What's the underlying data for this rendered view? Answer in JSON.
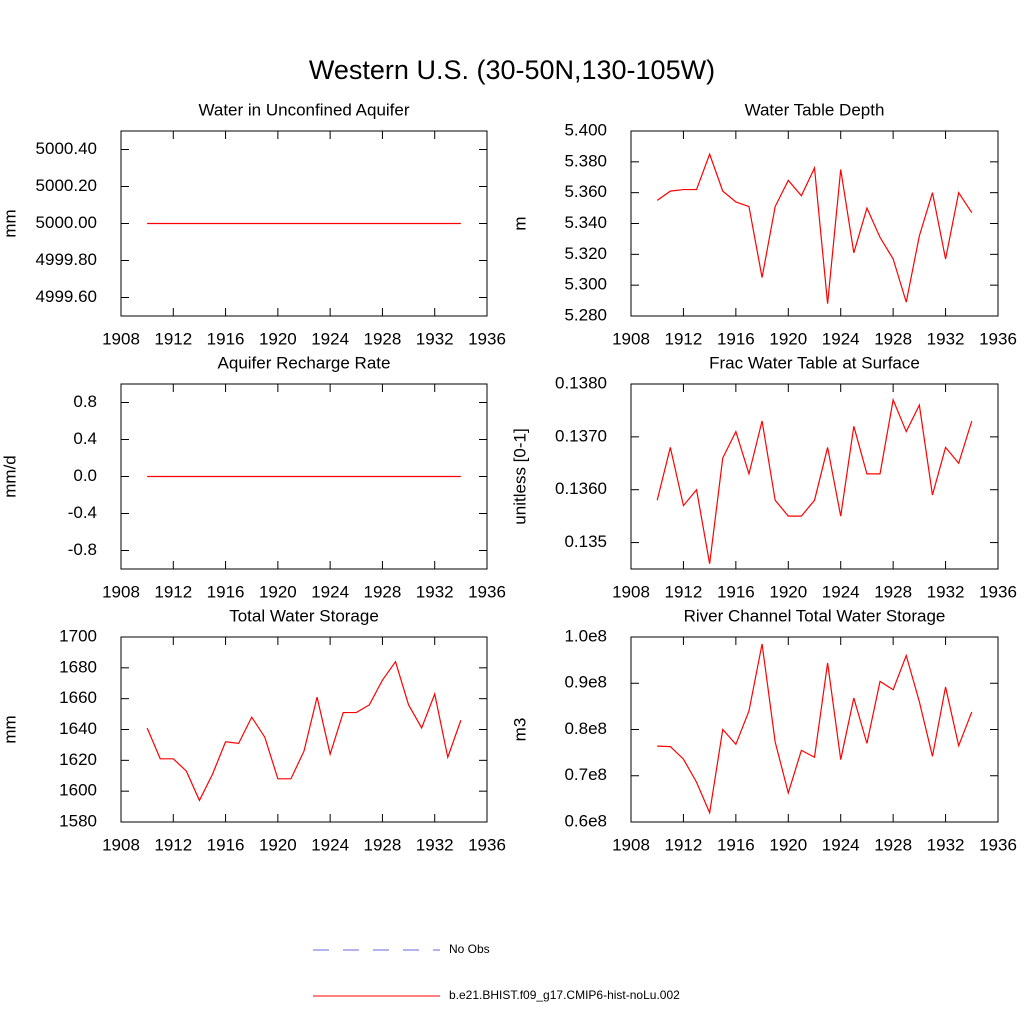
{
  "title": "Western U.S. (30-50N,130-105W)",
  "legend": [
    {
      "name": "No Obs",
      "color": "#6a6ad8",
      "dashed": true
    },
    {
      "name": "b.e21.BHIST.f09_g17.CMIP6-hist-noLu.002",
      "color": "#ff0000",
      "dashed": false
    }
  ],
  "chart_data": [
    {
      "type": "line",
      "title": "Water in Unconfined Aquifer",
      "y_label": "mm",
      "color": "#ff0000",
      "x": [
        1910,
        1911,
        1912,
        1913,
        1914,
        1915,
        1916,
        1917,
        1918,
        1919,
        1920,
        1921,
        1922,
        1923,
        1924,
        1925,
        1926,
        1927,
        1928,
        1929,
        1930,
        1931,
        1932,
        1933,
        1934
      ],
      "values": [
        5000,
        5000,
        5000,
        5000,
        5000,
        5000,
        5000,
        5000,
        5000,
        5000,
        5000,
        5000,
        5000,
        5000,
        5000,
        5000,
        5000,
        5000,
        5000,
        5000,
        5000,
        5000,
        5000,
        5000,
        5000
      ],
      "xlim": [
        1908,
        1936
      ],
      "xticks": [
        1908,
        1912,
        1916,
        1920,
        1924,
        1928,
        1932,
        1936
      ],
      "ylim": [
        4999.5,
        5000.5
      ],
      "yticks": [
        {
          "value": 4999.6,
          "label": "4999.60"
        },
        {
          "value": 4999.8,
          "label": "4999.80"
        },
        {
          "value": 5000.0,
          "label": "5000.00"
        },
        {
          "value": 5000.2,
          "label": "5000.20"
        },
        {
          "value": 5000.4,
          "label": "5000.40"
        }
      ]
    },
    {
      "type": "line",
      "title": "Water Table Depth",
      "y_label": "m",
      "color": "#ff0000",
      "x": [
        1910,
        1911,
        1912,
        1913,
        1914,
        1915,
        1916,
        1917,
        1918,
        1919,
        1920,
        1921,
        1922,
        1923,
        1924,
        1925,
        1926,
        1927,
        1928,
        1929,
        1930,
        1931,
        1932,
        1933,
        1934
      ],
      "values": [
        5.355,
        5.361,
        5.362,
        5.362,
        5.385,
        5.361,
        5.354,
        5.351,
        5.305,
        5.351,
        5.368,
        5.358,
        5.376,
        5.288,
        5.375,
        5.321,
        5.35,
        5.331,
        5.317,
        5.289,
        5.332,
        5.36,
        5.317,
        5.36,
        5.347
      ],
      "xlim": [
        1908,
        1936
      ],
      "xticks": [
        1908,
        1912,
        1916,
        1920,
        1924,
        1928,
        1932,
        1936
      ],
      "ylim": [
        5.28,
        5.4
      ],
      "yticks": [
        {
          "value": 5.28,
          "label": "5.280"
        },
        {
          "value": 5.3,
          "label": "5.300"
        },
        {
          "value": 5.32,
          "label": "5.320"
        },
        {
          "value": 5.34,
          "label": "5.340"
        },
        {
          "value": 5.36,
          "label": "5.360"
        },
        {
          "value": 5.38,
          "label": "5.380"
        },
        {
          "value": 5.4,
          "label": "5.400"
        }
      ]
    },
    {
      "type": "line",
      "title": "Aquifer Recharge Rate",
      "y_label": "mm/d",
      "color": "#ff0000",
      "x": [
        1910,
        1911,
        1912,
        1913,
        1914,
        1915,
        1916,
        1917,
        1918,
        1919,
        1920,
        1921,
        1922,
        1923,
        1924,
        1925,
        1926,
        1927,
        1928,
        1929,
        1930,
        1931,
        1932,
        1933,
        1934
      ],
      "values": [
        0,
        0,
        0,
        0,
        0,
        0,
        0,
        0,
        0,
        0,
        0,
        0,
        0,
        0,
        0,
        0,
        0,
        0,
        0,
        0,
        0,
        0,
        0,
        0,
        0
      ],
      "xlim": [
        1908,
        1936
      ],
      "xticks": [
        1908,
        1912,
        1916,
        1920,
        1924,
        1928,
        1932,
        1936
      ],
      "ylim": [
        -1,
        1
      ],
      "yticks": [
        -0.8,
        -0.4,
        {
          "value": 0,
          "label": "0.0"
        },
        0.4,
        0.8
      ]
    },
    {
      "type": "line",
      "title": "Frac Water Table at Surface",
      "y_label": "unitless [0-1]",
      "color": "#ff0000",
      "x": [
        1910,
        1911,
        1912,
        1913,
        1914,
        1915,
        1916,
        1917,
        1918,
        1919,
        1920,
        1921,
        1922,
        1923,
        1924,
        1925,
        1926,
        1927,
        1928,
        1929,
        1930,
        1931,
        1932,
        1933,
        1934
      ],
      "values": [
        0.1358,
        0.1368,
        0.1357,
        0.136,
        0.1346,
        0.1366,
        0.1371,
        0.1363,
        0.1373,
        0.1358,
        0.1355,
        0.1355,
        0.1358,
        0.1368,
        0.1355,
        0.1372,
        0.1363,
        0.1363,
        0.1377,
        0.1371,
        0.1376,
        0.1359,
        0.1368,
        0.1365,
        0.1373
      ],
      "xlim": [
        1908,
        1936
      ],
      "xticks": [
        1908,
        1912,
        1916,
        1920,
        1924,
        1928,
        1932,
        1936
      ],
      "ylim": [
        0.1345,
        0.138
      ],
      "yticks": [
        0.135,
        {
          "value": 0.136,
          "label": "0.1360"
        },
        {
          "value": 0.137,
          "label": "0.1370"
        },
        {
          "value": 0.138,
          "label": "0.1380"
        }
      ]
    },
    {
      "type": "line",
      "title": "Total Water Storage",
      "y_label": "mm",
      "color": "#ff0000",
      "x": [
        1910,
        1911,
        1912,
        1913,
        1914,
        1915,
        1916,
        1917,
        1918,
        1919,
        1920,
        1921,
        1922,
        1923,
        1924,
        1925,
        1926,
        1927,
        1928,
        1929,
        1930,
        1931,
        1932,
        1933,
        1934
      ],
      "values": [
        1641,
        1621,
        1621,
        1613,
        1594,
        1611,
        1632,
        1631,
        1648,
        1635,
        1608,
        1608,
        1626,
        1661,
        1624,
        1651,
        1651,
        1656,
        1672,
        1684,
        1656,
        1641,
        1663,
        1622,
        1646
      ],
      "xlim": [
        1908,
        1936
      ],
      "xticks": [
        1908,
        1912,
        1916,
        1920,
        1924,
        1928,
        1932,
        1936
      ],
      "ylim": [
        1580,
        1700
      ],
      "yticks": [
        1580,
        1600,
        1620,
        1640,
        1660,
        1680,
        1700
      ]
    },
    {
      "type": "line",
      "title": "River Channel Total Water Storage",
      "y_label": "m3",
      "color": "#ff0000",
      "x": [
        1910,
        1911,
        1912,
        1913,
        1914,
        1915,
        1916,
        1917,
        1918,
        1919,
        1920,
        1921,
        1922,
        1923,
        1924,
        1925,
        1926,
        1927,
        1928,
        1929,
        1930,
        1931,
        1932,
        1933,
        1934
      ],
      "values": [
        76400000,
        76300000,
        73600000,
        68600000,
        62000000,
        80000000,
        76800000,
        84000000,
        98500000,
        77300000,
        66300000,
        75500000,
        74000000,
        94400000,
        73500000,
        86800000,
        77000000,
        90400000,
        88600000,
        96000000,
        86000000,
        74200000,
        89200000,
        76500000,
        83800000
      ],
      "xlim": [
        1908,
        1936
      ],
      "xticks": [
        1908,
        1912,
        1916,
        1920,
        1924,
        1928,
        1932,
        1936
      ],
      "ylim": [
        60000000,
        100000000
      ],
      "yticks": [
        {
          "value": 60000000,
          "label": "0.6e8"
        },
        {
          "value": 70000000,
          "label": "0.7e8"
        },
        {
          "value": 80000000,
          "label": "0.8e8"
        },
        {
          "value": 90000000,
          "label": "0.9e8"
        },
        {
          "value": 100000000,
          "label": "1.0e8"
        }
      ]
    }
  ]
}
